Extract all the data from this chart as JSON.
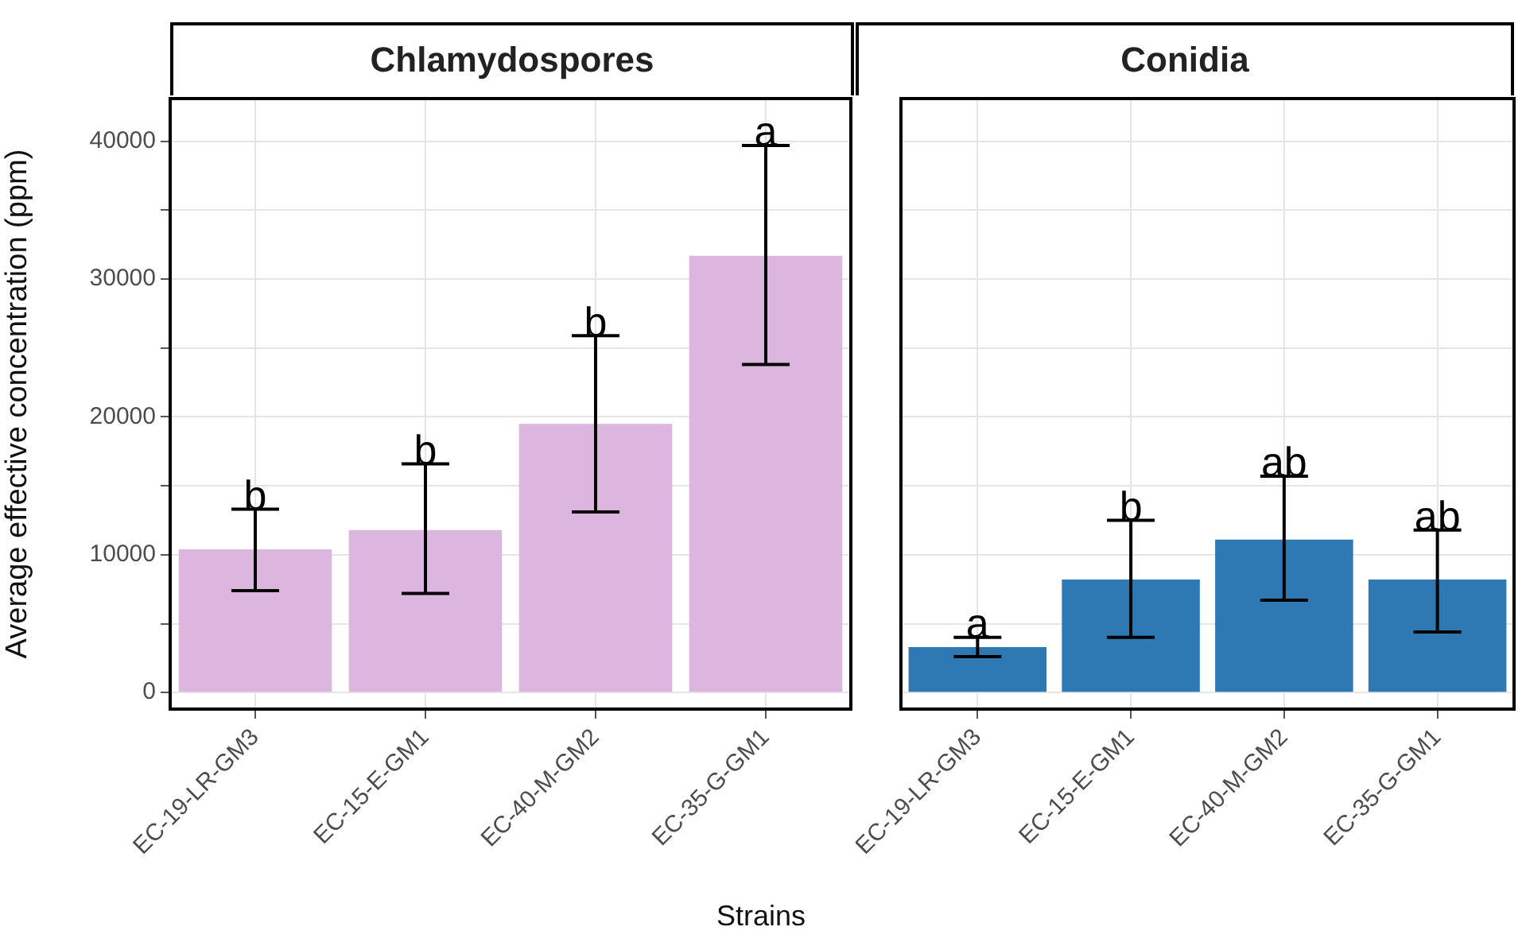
{
  "chart_data": [
    {
      "type": "bar",
      "title": "Chlamydospores",
      "ylabel": "Average effective concentration (ppm)",
      "xlabel": "Strains",
      "categories": [
        "EC-19-LR-GM3",
        "EC-15-E-GM1",
        "EC-40-M-GM2",
        "EC-35-G-GM1"
      ],
      "values": [
        10400,
        11800,
        19500,
        31700
      ],
      "color": "#dcb6de",
      "errors": [
        [
          7400,
          13300
        ],
        [
          7200,
          16600
        ],
        [
          13100,
          25900
        ],
        [
          23800,
          39700
        ]
      ],
      "ylim": [
        -1200,
        43100
      ],
      "yticks": [
        0,
        {
          "value": 5000,
          "label": null
        },
        10000,
        {
          "value": 15000,
          "label": null
        },
        20000,
        {
          "value": 25000,
          "label": null
        },
        30000,
        {
          "value": 35000,
          "label": null
        },
        40000
      ],
      "grid": true,
      "annotations": [
        {
          "text": "b",
          "x": "EC-19-LR-GM3",
          "y": 13300
        },
        {
          "text": "b",
          "x": "EC-15-E-GM1",
          "y": 16600
        },
        {
          "text": "b",
          "x": "EC-40-M-GM2",
          "y": 25900
        },
        {
          "text": "a",
          "x": "EC-35-G-GM1",
          "y": 39700
        }
      ]
    },
    {
      "type": "bar",
      "title": "Conidia",
      "categories": [
        "EC-19-LR-GM3",
        "EC-15-E-GM1",
        "EC-40-M-GM2",
        "EC-35-G-GM1"
      ],
      "values": [
        3300,
        8200,
        11100,
        8200
      ],
      "color": "#2e78b4",
      "errors": [
        [
          2600,
          4000
        ],
        [
          4000,
          12500
        ],
        [
          6700,
          15700
        ],
        [
          4400,
          11800
        ]
      ],
      "ylim": [
        -1200,
        43100
      ],
      "yticks": [
        0,
        {
          "value": 5000,
          "label": null
        },
        10000,
        {
          "value": 15000,
          "label": null
        },
        20000,
        {
          "value": 25000,
          "label": null
        },
        30000,
        {
          "value": 35000,
          "label": null
        },
        40000
      ],
      "grid": true,
      "tick_labels": "x",
      "annotations": [
        {
          "text": "a",
          "x": "EC-19-LR-GM3",
          "y": 4000
        },
        {
          "text": "b",
          "x": "EC-15-E-GM1",
          "y": 12500
        },
        {
          "text": "ab",
          "x": "EC-40-M-GM2",
          "y": 15700
        },
        {
          "text": "ab",
          "x": "EC-35-G-GM1",
          "y": 11800
        }
      ]
    }
  ]
}
